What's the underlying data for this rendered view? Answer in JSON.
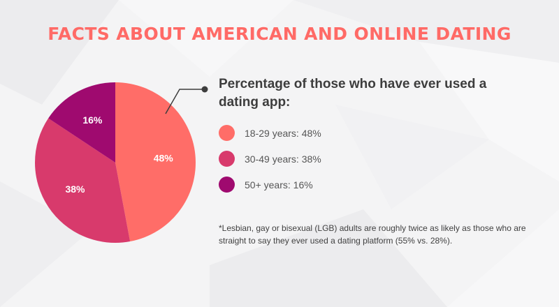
{
  "title": "FACTS ABOUT AMERICAN AND ONLINE DATING",
  "colors": {
    "accent": "#ff6a66",
    "slice_18_29": "#ff6d68",
    "slice_30_49": "#d83a6c",
    "slice_50_plus": "#9f0a6f",
    "text_dark": "#3d3d3d"
  },
  "chart_data": {
    "type": "pie",
    "title": "Percentage of those who have ever used a dating app:",
    "slices": [
      {
        "label": "18-29 years: 48%",
        "value": 48,
        "value_label": "48%",
        "color": "#ff6d68"
      },
      {
        "label": "30-49 years: 38%",
        "value": 38,
        "value_label": "38%",
        "color": "#d83a6c"
      },
      {
        "label": "50+ years: 16%",
        "value": 16,
        "value_label": "16%",
        "color": "#9f0a6f"
      }
    ],
    "start": "12 o'clock",
    "direction": "clockwise",
    "legend_position": "right"
  },
  "footnote": "*Lesbian, gay or bisexual (LGB) adults are roughly twice as likely as those who are straight to say they ever used a dating platform (55% vs. 28%)."
}
